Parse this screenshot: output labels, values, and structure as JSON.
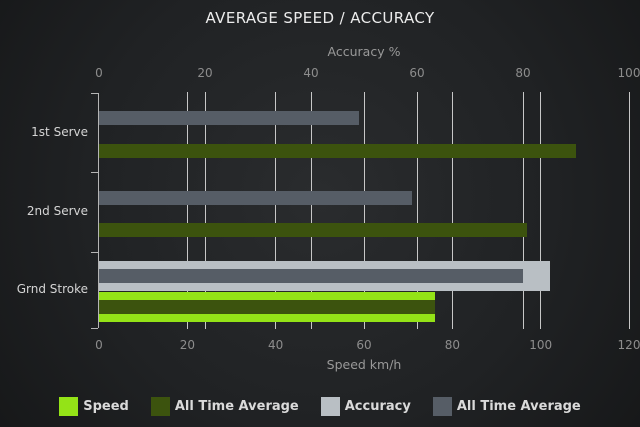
{
  "chart_data": {
    "type": "bar",
    "orientation": "horizontal",
    "title": "AVERAGE SPEED / ACCURACY",
    "top_axis": {
      "label": "Accuracy %",
      "min": 0,
      "max": 100,
      "ticks": [
        0,
        20,
        40,
        60,
        80,
        100
      ]
    },
    "bottom_axis": {
      "label": "Speed km/h",
      "min": 0,
      "max": 120,
      "ticks": [
        0,
        20,
        40,
        60,
        80,
        100,
        120
      ]
    },
    "categories": [
      "1st Serve",
      "2nd Serve",
      "Grnd Stroke"
    ],
    "series": [
      {
        "name": "Speed",
        "axis": "bottom",
        "role": "current",
        "color": "#94e317",
        "values": [
          null,
          null,
          76
        ]
      },
      {
        "name": "All Time Average",
        "axis": "bottom",
        "role": "average",
        "color": "#3c530e",
        "values": [
          108,
          97,
          76
        ]
      },
      {
        "name": "Accuracy",
        "axis": "top",
        "role": "current",
        "color": "#b9bfc4",
        "values": [
          null,
          null,
          85
        ]
      },
      {
        "name": "All Time Average",
        "axis": "top",
        "role": "average",
        "color": "#565d66",
        "values": [
          49,
          59,
          80
        ]
      }
    ],
    "legend": [
      {
        "label": "Speed",
        "color": "#94e317"
      },
      {
        "label": "All Time Average",
        "color": "#3c530e"
      },
      {
        "label": "Accuracy",
        "color": "#b9bfc4"
      },
      {
        "label": "All Time Average",
        "color": "#565d66"
      }
    ],
    "grid": true,
    "legend_position": "bottom"
  },
  "colors": {
    "grid_line": "#c7c7c7",
    "axis_line": "#b5b5b5",
    "title_text": "#ececec",
    "tick_text": "#8d8d8d",
    "axis_label_text": "#999999",
    "category_text": "#d5d5d5",
    "legend_text": "#dadada"
  }
}
